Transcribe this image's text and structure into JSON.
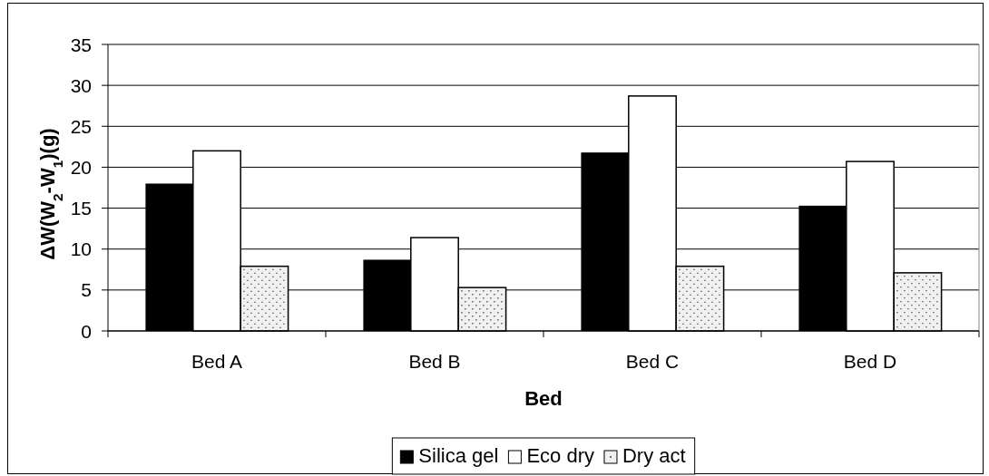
{
  "chart_data": {
    "type": "bar",
    "xlabel": "Bed",
    "ylabel": "ΔW(W$_{2}$-W$_{1}$)(g)",
    "categories": [
      "Bed A",
      "Bed B",
      "Bed C",
      "Bed D"
    ],
    "series": [
      {
        "name": "Silica gel",
        "color": "#000000",
        "values": [
          18.0,
          8.7,
          21.8,
          15.3
        ]
      },
      {
        "name": "Eco dry",
        "color": "#ffffff",
        "values": [
          22.0,
          11.4,
          28.7,
          20.7
        ]
      },
      {
        "name": "Dry act",
        "color": "#f0f0f0",
        "values": [
          7.9,
          5.3,
          7.9,
          7.1
        ]
      }
    ],
    "ylim": [
      0,
      35
    ],
    "yticks": [
      0,
      5,
      10,
      15,
      20,
      25,
      30,
      35
    ],
    "grid": "y",
    "legend": "bottom"
  }
}
